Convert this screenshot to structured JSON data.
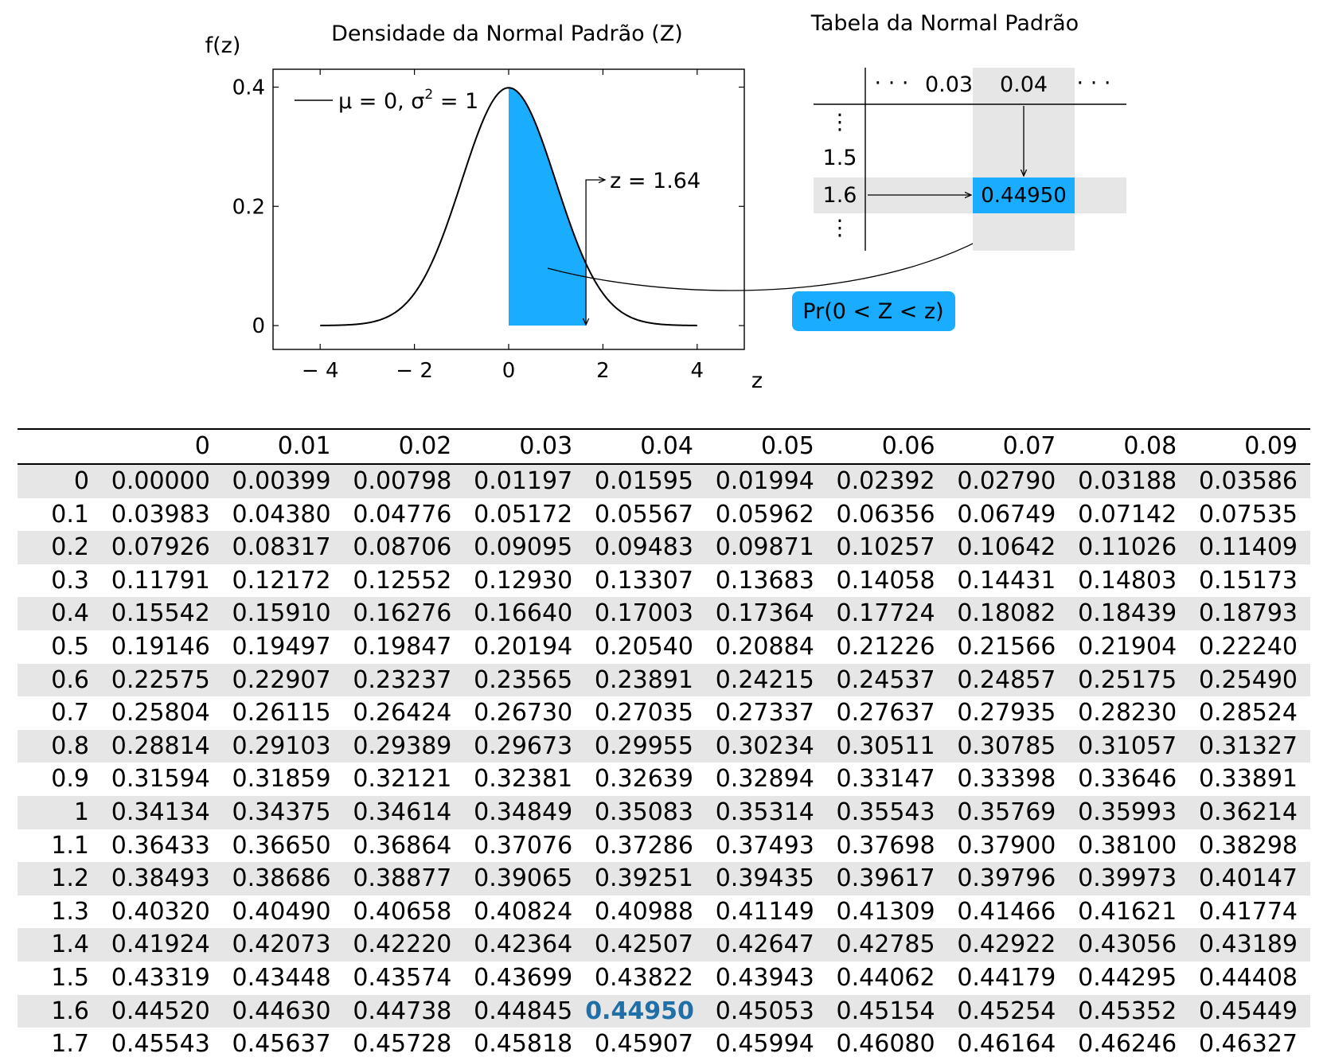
{
  "colors": {
    "accent": "#1aadff",
    "shade": "#e6e6e6",
    "highlight_text": "#1f6fa8"
  },
  "chart_data": [
    {
      "type": "line",
      "title": "Densidade da Normal Padrão (Z)",
      "ylabel": "f(z)",
      "xlabel": "z",
      "xlim": [
        -5,
        5
      ],
      "ylim": [
        -0.04,
        0.43
      ],
      "x_ticks": [
        "− 4",
        "− 2",
        "0",
        "2",
        "4"
      ],
      "x_tick_values": [
        -4,
        -2,
        0,
        2,
        4
      ],
      "y_ticks": [
        "0",
        "0.2",
        "0.4"
      ],
      "y_tick_values": [
        0,
        0.2,
        0.4
      ],
      "grid": false,
      "legend_position": "top-left",
      "series": [
        {
          "name_parts": {
            "main": "μ = 0, σ",
            "sup": "2",
            "tail": " = 1"
          },
          "function": "standard normal pdf",
          "x_range": [
            -4,
            4
          ],
          "points": [
            [
              -4,
              0.0001
            ],
            [
              -3,
              0.0044
            ],
            [
              -2,
              0.054
            ],
            [
              -1.5,
              0.1295
            ],
            [
              -1,
              0.242
            ],
            [
              -0.5,
              0.3521
            ],
            [
              0,
              0.3989
            ],
            [
              0.5,
              0.3521
            ],
            [
              1,
              0.242
            ],
            [
              1.5,
              0.1295
            ],
            [
              2,
              0.054
            ],
            [
              3,
              0.0044
            ],
            [
              4,
              0.0001
            ]
          ]
        }
      ],
      "shaded_region": {
        "from": 0,
        "to": 1.64
      },
      "annotation": "z = 1.64",
      "annotation_z": 1.64,
      "callout_label": "Pr(0 <  Z  <  z)"
    }
  ],
  "mini_table": {
    "title": "Tabela da Normal Padrão",
    "col_headers": [
      "· · ·",
      "0.03",
      "0.04",
      "· · ·"
    ],
    "row_headers": [
      "1.5",
      "1.6"
    ],
    "vdots": "⋮",
    "value": "0.44950"
  },
  "table": {
    "headers": [
      "",
      "0",
      "0.01",
      "0.02",
      "0.03",
      "0.04",
      "0.05",
      "0.06",
      "0.07",
      "0.08",
      "0.09"
    ],
    "rows": [
      [
        "0",
        "0.00000",
        "0.00399",
        "0.00798",
        "0.01197",
        "0.01595",
        "0.01994",
        "0.02392",
        "0.02790",
        "0.03188",
        "0.03586"
      ],
      [
        "0.1",
        "0.03983",
        "0.04380",
        "0.04776",
        "0.05172",
        "0.05567",
        "0.05962",
        "0.06356",
        "0.06749",
        "0.07142",
        "0.07535"
      ],
      [
        "0.2",
        "0.07926",
        "0.08317",
        "0.08706",
        "0.09095",
        "0.09483",
        "0.09871",
        "0.10257",
        "0.10642",
        "0.11026",
        "0.11409"
      ],
      [
        "0.3",
        "0.11791",
        "0.12172",
        "0.12552",
        "0.12930",
        "0.13307",
        "0.13683",
        "0.14058",
        "0.14431",
        "0.14803",
        "0.15173"
      ],
      [
        "0.4",
        "0.15542",
        "0.15910",
        "0.16276",
        "0.16640",
        "0.17003",
        "0.17364",
        "0.17724",
        "0.18082",
        "0.18439",
        "0.18793"
      ],
      [
        "0.5",
        "0.19146",
        "0.19497",
        "0.19847",
        "0.20194",
        "0.20540",
        "0.20884",
        "0.21226",
        "0.21566",
        "0.21904",
        "0.22240"
      ],
      [
        "0.6",
        "0.22575",
        "0.22907",
        "0.23237",
        "0.23565",
        "0.23891",
        "0.24215",
        "0.24537",
        "0.24857",
        "0.25175",
        "0.25490"
      ],
      [
        "0.7",
        "0.25804",
        "0.26115",
        "0.26424",
        "0.26730",
        "0.27035",
        "0.27337",
        "0.27637",
        "0.27935",
        "0.28230",
        "0.28524"
      ],
      [
        "0.8",
        "0.28814",
        "0.29103",
        "0.29389",
        "0.29673",
        "0.29955",
        "0.30234",
        "0.30511",
        "0.30785",
        "0.31057",
        "0.31327"
      ],
      [
        "0.9",
        "0.31594",
        "0.31859",
        "0.32121",
        "0.32381",
        "0.32639",
        "0.32894",
        "0.33147",
        "0.33398",
        "0.33646",
        "0.33891"
      ],
      [
        "1",
        "0.34134",
        "0.34375",
        "0.34614",
        "0.34849",
        "0.35083",
        "0.35314",
        "0.35543",
        "0.35769",
        "0.35993",
        "0.36214"
      ],
      [
        "1.1",
        "0.36433",
        "0.36650",
        "0.36864",
        "0.37076",
        "0.37286",
        "0.37493",
        "0.37698",
        "0.37900",
        "0.38100",
        "0.38298"
      ],
      [
        "1.2",
        "0.38493",
        "0.38686",
        "0.38877",
        "0.39065",
        "0.39251",
        "0.39435",
        "0.39617",
        "0.39796",
        "0.39973",
        "0.40147"
      ],
      [
        "1.3",
        "0.40320",
        "0.40490",
        "0.40658",
        "0.40824",
        "0.40988",
        "0.41149",
        "0.41309",
        "0.41466",
        "0.41621",
        "0.41774"
      ],
      [
        "1.4",
        "0.41924",
        "0.42073",
        "0.42220",
        "0.42364",
        "0.42507",
        "0.42647",
        "0.42785",
        "0.42922",
        "0.43056",
        "0.43189"
      ],
      [
        "1.5",
        "0.43319",
        "0.43448",
        "0.43574",
        "0.43699",
        "0.43822",
        "0.43943",
        "0.44062",
        "0.44179",
        "0.44295",
        "0.44408"
      ],
      [
        "1.6",
        "0.44520",
        "0.44630",
        "0.44738",
        "0.44845",
        "0.44950",
        "0.45053",
        "0.45154",
        "0.45254",
        "0.45352",
        "0.45449"
      ],
      [
        "1.7",
        "0.45543",
        "0.45637",
        "0.45728",
        "0.45818",
        "0.45907",
        "0.45994",
        "0.46080",
        "0.46164",
        "0.46246",
        "0.46327"
      ]
    ],
    "highlight": {
      "row": 16,
      "col": 5
    }
  }
}
